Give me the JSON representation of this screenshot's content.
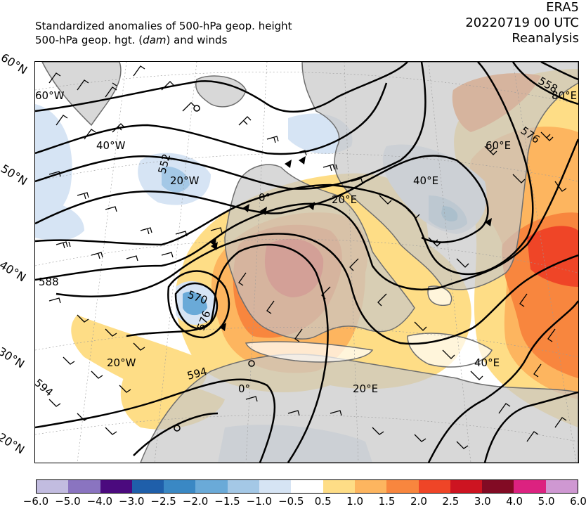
{
  "header": {
    "title_line1": "Standardized anomalies of 500-hPa geop. height",
    "title_line2_prefix": "500-hPa geop. hgt. (",
    "title_line2_unit": "dam",
    "title_line2_suffix": ") and winds",
    "dataset": "ERA5",
    "datetime": "20220719 00 UTC",
    "product": "Reanalysis"
  },
  "map": {
    "lat_labels": [
      "60°N",
      "50°N",
      "40°N",
      "30°N",
      "20°N"
    ],
    "lon_labels": [
      "60°W",
      "40°W",
      "20°W",
      "0°",
      "20°E",
      "40°E",
      "60°E",
      "80°E",
      "20°W",
      "0°",
      "20°E",
      "40°E"
    ],
    "contour_labels": [
      "552",
      "558",
      "576",
      "588",
      "570",
      "576",
      "594",
      "594"
    ],
    "colors": {
      "land": "#c8c8c8",
      "coastline": "#6e6e6e",
      "contour": "#000000"
    }
  },
  "colorbar": {
    "ticks": [
      "−6.0",
      "−5.0",
      "−4.0",
      "−3.0",
      "−2.5",
      "−2.0",
      "−1.5",
      "−1.0",
      "−0.5",
      "0.5",
      "1.0",
      "1.5",
      "2.0",
      "2.5",
      "3.0",
      "4.0",
      "5.0",
      "6.0"
    ],
    "colors": [
      "#c2bce0",
      "#8a74c0",
      "#4b0a7e",
      "#1f5faa",
      "#3a88c4",
      "#6aaad8",
      "#a4c8e6",
      "#d6e4f4",
      "#ffffff",
      "#fedd86",
      "#fdb55f",
      "#f8863e",
      "#ef4527",
      "#cd1421",
      "#820b24",
      "#dc2280",
      "#cf98d2"
    ]
  }
}
